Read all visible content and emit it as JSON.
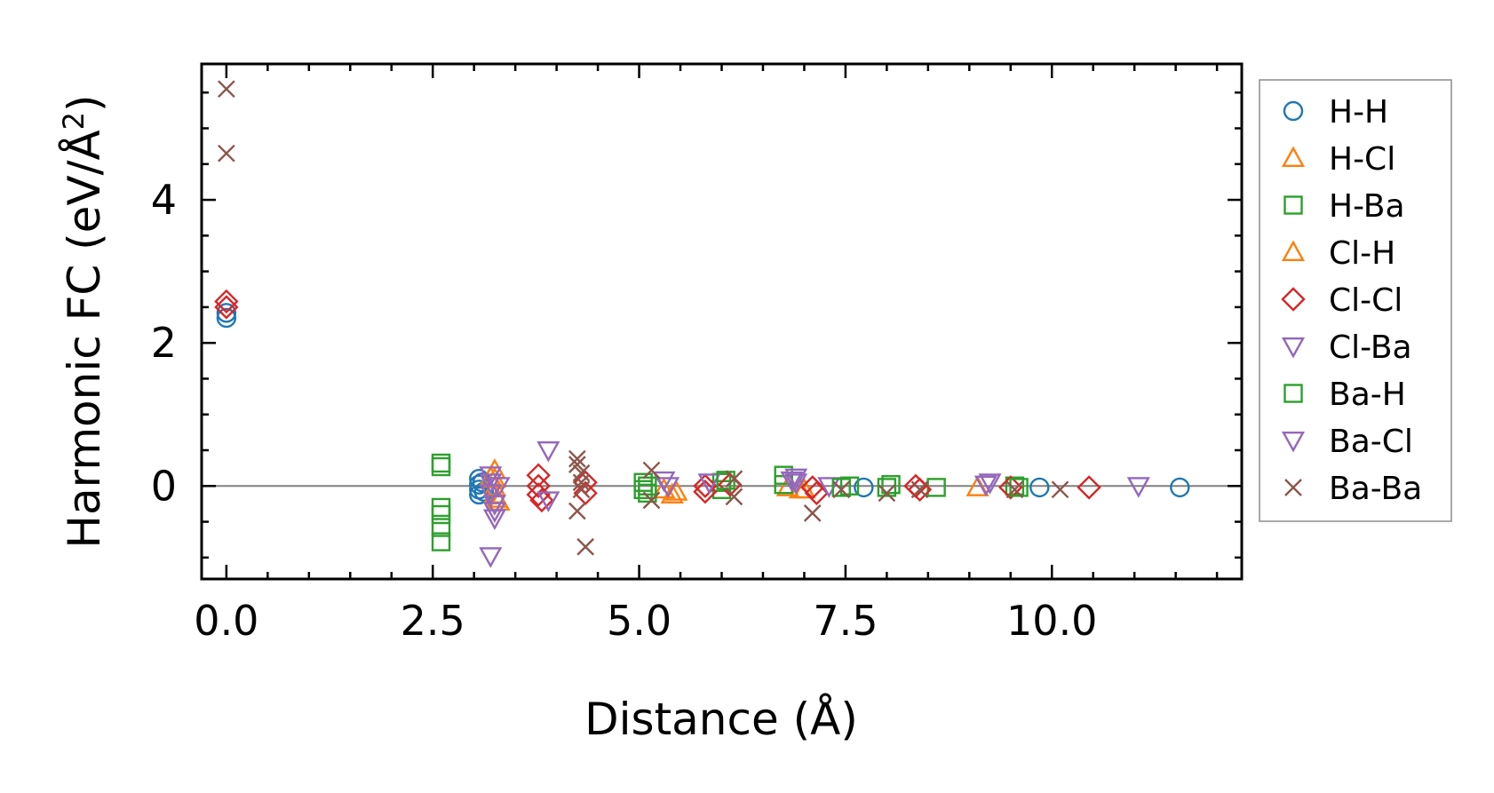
{
  "chart_data": {
    "type": "scatter",
    "xlabel": "Distance (Å)",
    "ylabel_main": "Harmonic FC (eV/Å",
    "ylabel_sup": "2",
    "ylabel_close": ")",
    "xlim": [
      -0.3,
      12.3
    ],
    "ylim": [
      -1.3,
      5.9
    ],
    "xticks": [
      0.0,
      2.5,
      5.0,
      7.5,
      10.0
    ],
    "xtick_labels": [
      "0.0",
      "2.5",
      "5.0",
      "7.5",
      "10.0"
    ],
    "yticks": [
      0,
      2,
      4
    ],
    "ytick_labels": [
      "0",
      "2",
      "4"
    ],
    "zero_line": true,
    "grid": false,
    "legend_position": "right, outside plot",
    "series": [
      {
        "name": "H-H",
        "marker": "circle",
        "color": "#1f77b4",
        "points": [
          [
            0,
            2.35
          ],
          [
            0,
            2.42
          ],
          [
            3.06,
            0.1
          ],
          [
            3.06,
            0.02
          ],
          [
            3.06,
            -0.05
          ],
          [
            3.06,
            -0.12
          ],
          [
            3.1,
            0.05
          ],
          [
            3.12,
            -0.08
          ],
          [
            7.72,
            -0.02
          ],
          [
            9.85,
            -0.02
          ],
          [
            11.55,
            -0.02
          ]
        ]
      },
      {
        "name": "H-Cl",
        "marker": "triangle-up",
        "color": "#ff7f0e",
        "points": [
          [
            3.25,
            0.22
          ],
          [
            3.25,
            0.1
          ],
          [
            3.25,
            -0.02
          ],
          [
            3.25,
            -0.12
          ],
          [
            3.3,
            -0.22
          ],
          [
            5.3,
            -0.05
          ],
          [
            5.45,
            -0.08
          ],
          [
            6.8,
            -0.02
          ],
          [
            6.95,
            -0.05
          ],
          [
            9.1,
            -0.02
          ]
        ]
      },
      {
        "name": "H-Ba",
        "marker": "square",
        "color": "#2ca02c",
        "points": [
          [
            2.6,
            0.32
          ],
          [
            2.6,
            0.27
          ],
          [
            2.6,
            -0.3
          ],
          [
            2.6,
            -0.4
          ],
          [
            2.6,
            -0.58
          ],
          [
            2.6,
            -0.78
          ],
          [
            5.05,
            0.05
          ],
          [
            5.05,
            -0.05
          ],
          [
            5.1,
            -0.1
          ],
          [
            6.0,
            0.05
          ],
          [
            6.0,
            -0.05
          ],
          [
            6.75,
            0.15
          ],
          [
            6.75,
            0.02
          ],
          [
            7.55,
            0.0
          ],
          [
            8.05,
            0.02
          ],
          [
            8.6,
            -0.02
          ],
          [
            9.55,
            0.0
          ]
        ]
      },
      {
        "name": "Cl-H",
        "marker": "triangle-up",
        "color": "#ff7f0e",
        "points": [
          [
            3.2,
            0.12
          ],
          [
            3.28,
            -0.18
          ],
          [
            5.4,
            -0.12
          ],
          [
            7.0,
            -0.05
          ]
        ]
      },
      {
        "name": "Cl-Cl",
        "marker": "diamond",
        "color": "#d62728",
        "points": [
          [
            0,
            2.58
          ],
          [
            0,
            2.5
          ],
          [
            3.78,
            0.15
          ],
          [
            3.78,
            0.0
          ],
          [
            3.78,
            -0.12
          ],
          [
            3.82,
            -0.2
          ],
          [
            4.35,
            0.05
          ],
          [
            4.35,
            -0.1
          ],
          [
            5.8,
            0.0
          ],
          [
            5.8,
            -0.08
          ],
          [
            6.1,
            0.02
          ],
          [
            7.1,
            -0.02
          ],
          [
            7.15,
            -0.1
          ],
          [
            8.35,
            0.0
          ],
          [
            8.4,
            -0.05
          ],
          [
            9.5,
            -0.02
          ],
          [
            10.45,
            -0.02
          ]
        ]
      },
      {
        "name": "Cl-Ba",
        "marker": "triangle-down",
        "color": "#9467bd",
        "points": [
          [
            3.2,
            0.15
          ],
          [
            3.2,
            0.05
          ],
          [
            3.2,
            -0.1
          ],
          [
            3.25,
            -0.25
          ],
          [
            3.25,
            -0.35
          ],
          [
            3.25,
            -0.45
          ],
          [
            3.2,
            -0.98
          ],
          [
            3.9,
            0.5
          ],
          [
            3.9,
            -0.2
          ],
          [
            5.3,
            0.08
          ],
          [
            5.85,
            0.05
          ],
          [
            6.9,
            0.12
          ],
          [
            6.9,
            0.05
          ],
          [
            7.3,
            0.0
          ],
          [
            9.25,
            0.05
          ],
          [
            11.05,
            0.0
          ]
        ]
      },
      {
        "name": "Ba-H",
        "marker": "square",
        "color": "#2ca02c",
        "points": [
          [
            5.1,
            0.0
          ],
          [
            6.05,
            0.08
          ],
          [
            7.45,
            -0.02
          ],
          [
            8.0,
            -0.02
          ],
          [
            9.6,
            -0.02
          ]
        ]
      },
      {
        "name": "Ba-Cl",
        "marker": "triangle-down",
        "color": "#9467bd",
        "points": [
          [
            3.3,
            0.0
          ],
          [
            5.35,
            0.0
          ],
          [
            6.85,
            0.08
          ],
          [
            9.2,
            0.02
          ]
        ]
      },
      {
        "name": "Ba-Ba",
        "marker": "x",
        "color": "#8c564b",
        "points": [
          [
            0,
            5.55
          ],
          [
            0,
            4.65
          ],
          [
            4.25,
            0.38
          ],
          [
            4.25,
            0.3
          ],
          [
            4.3,
            0.18
          ],
          [
            4.3,
            0.05
          ],
          [
            4.3,
            -0.05
          ],
          [
            4.25,
            -0.35
          ],
          [
            4.35,
            -0.85
          ],
          [
            5.15,
            0.22
          ],
          [
            5.15,
            -0.2
          ],
          [
            6.15,
            0.1
          ],
          [
            6.15,
            -0.15
          ],
          [
            7.1,
            -0.38
          ],
          [
            7.45,
            -0.05
          ],
          [
            8.0,
            -0.1
          ],
          [
            8.4,
            -0.05
          ],
          [
            9.55,
            -0.05
          ],
          [
            10.1,
            -0.05
          ]
        ]
      }
    ]
  }
}
